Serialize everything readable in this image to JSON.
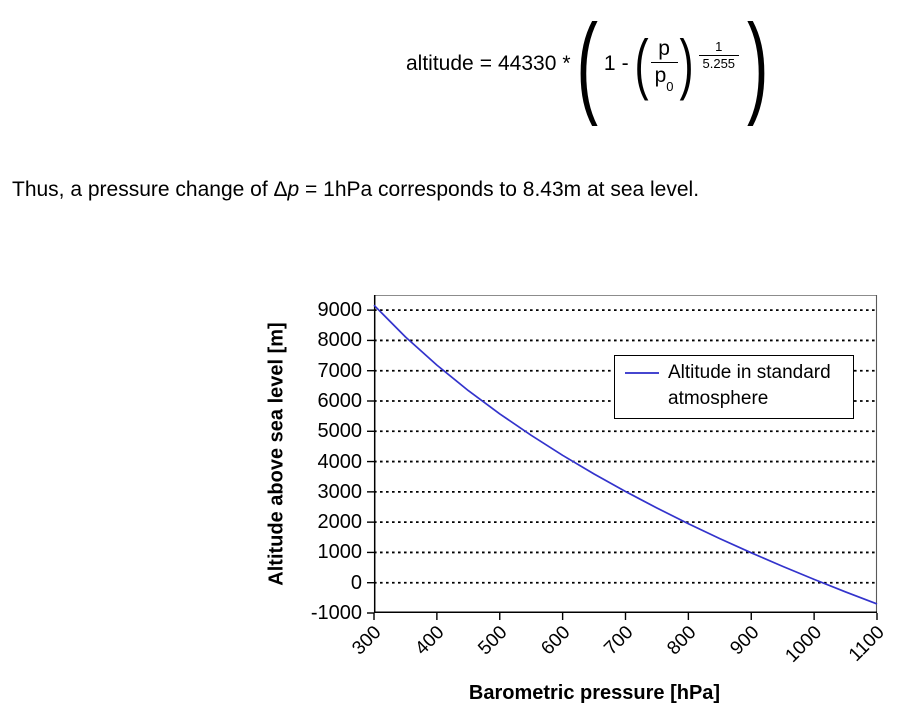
{
  "formula": {
    "lhs": "altitude",
    "equals": "=",
    "coefficient": "44330",
    "multiply": "*",
    "minuend": "1",
    "minus": "-",
    "frac_num": "p",
    "frac_den_base": "p",
    "frac_den_sub": "0",
    "exp_num": "1",
    "exp_den": "5.255"
  },
  "paragraph": {
    "before_delta": "Thus, a pressure change of ",
    "delta": "Δ",
    "var": "p",
    "after_var": " = 1hPa corresponds to 8.43m at sea level."
  },
  "chart_data": {
    "type": "line",
    "title": "",
    "xlabel": "Barometric pressure [hPa]",
    "ylabel": "Altitude above sea level [m]",
    "xlim": [
      300,
      1100
    ],
    "ylim": [
      -1000,
      9500
    ],
    "x_ticks": [
      300,
      400,
      500,
      600,
      700,
      800,
      900,
      1000,
      1100
    ],
    "y_ticks": [
      9000,
      8000,
      7000,
      6000,
      5000,
      4000,
      3000,
      2000,
      1000,
      0,
      -1000
    ],
    "grid": "horizontal-dotted",
    "legend_position": "inside-top-right",
    "series": [
      {
        "name": "Altitude in standard atmosphere",
        "color": "#3333cc",
        "x": [
          300,
          350,
          400,
          450,
          500,
          550,
          600,
          650,
          700,
          750,
          800,
          850,
          900,
          950,
          1000,
          1050,
          1100
        ],
        "values": [
          9162,
          8118,
          7186,
          6344,
          5575,
          4866,
          4207,
          3591,
          3013,
          2466,
          1949,
          1457,
          988,
          540,
          111,
          -302,
          -699
        ]
      }
    ],
    "colors": {
      "grid": "#000000",
      "axis": "#000000",
      "border_top": "#8c8c8c",
      "border_right": "#5a5a5a"
    }
  }
}
